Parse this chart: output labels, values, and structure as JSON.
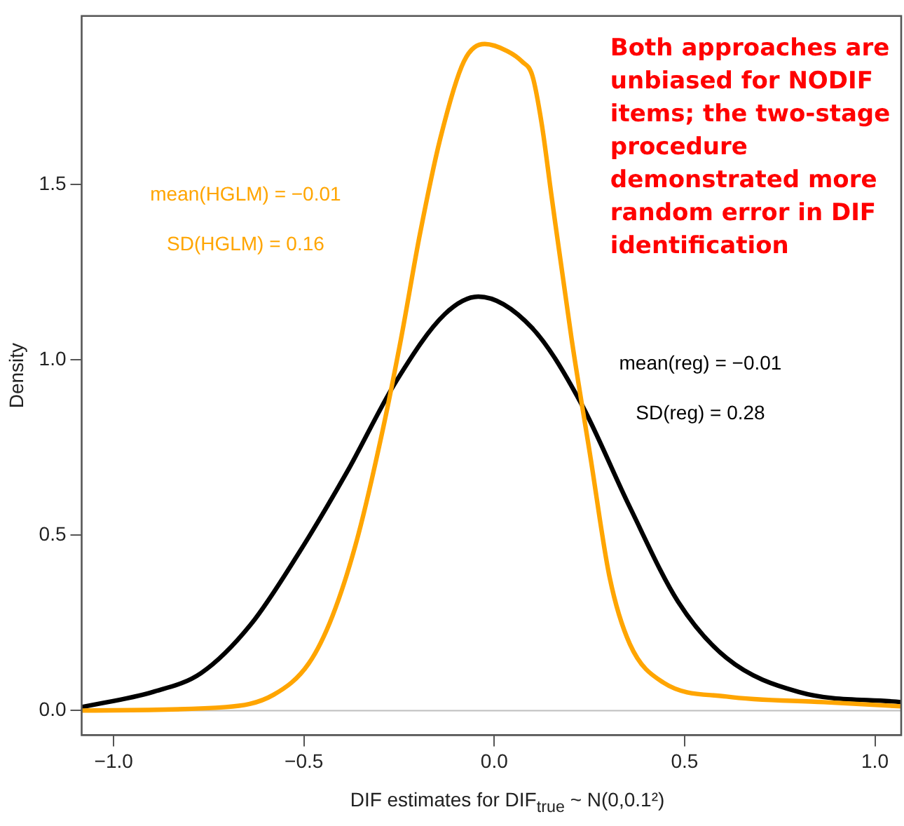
{
  "chart_data": {
    "type": "line",
    "xlabel": "DIF estimates for DIF$_{true}$ ~ N(0,0.1²)",
    "ylabel": "Density",
    "xlim": [
      -1.084,
      1.069
    ],
    "ylim": [
      -0.07,
      1.98
    ],
    "xticks": [
      {
        "value": -1,
        "label": "−1.0"
      },
      {
        "value": -0.5,
        "label": "−0.5"
      },
      {
        "value": 0,
        "label": "0.0"
      },
      {
        "value": 0.5,
        "label": "0.5"
      },
      {
        "value": 1,
        "label": "1.0"
      }
    ],
    "yticks": [
      {
        "value": 0,
        "label": "0.0"
      },
      {
        "value": 0.5,
        "label": "0.5"
      },
      {
        "value": 1,
        "label": "1.0"
      },
      {
        "value": 1.5,
        "label": "1.5"
      }
    ],
    "grid": false,
    "legend": false,
    "marker": "none",
    "line_style": "solid",
    "ref_lines": [
      {
        "axis": "y",
        "value": 0,
        "color": "#bebebe"
      }
    ],
    "series": [
      {
        "color": "#ffa500",
        "x": [
          -1.084,
          -0.705,
          -0.58,
          -0.487,
          -0.425,
          -0.36,
          -0.295,
          -0.245,
          -0.195,
          -0.142,
          -0.08,
          -0.025,
          0.034,
          0.073,
          0.1,
          0.125,
          0.15,
          0.203,
          0.253,
          0.303,
          0.356,
          0.444,
          0.61,
          0.866,
          1.069
        ],
        "values": [
          0.0,
          0.01,
          0.045,
          0.135,
          0.27,
          0.49,
          0.79,
          1.06,
          1.36,
          1.63,
          1.85,
          1.9,
          1.88,
          1.85,
          1.81,
          1.67,
          1.47,
          1.06,
          0.72,
          0.38,
          0.19,
          0.08,
          0.04,
          0.024,
          0.012
        ]
      },
      {
        "color": "#000000",
        "x": [
          -1.084,
          -0.897,
          -0.77,
          -0.64,
          -0.513,
          -0.387,
          -0.257,
          -0.13,
          -0.042,
          0.1,
          0.226,
          0.356,
          0.483,
          0.61,
          0.8,
          1.069
        ],
        "values": [
          0.01,
          0.053,
          0.107,
          0.245,
          0.45,
          0.68,
          0.94,
          1.13,
          1.18,
          1.09,
          0.88,
          0.58,
          0.31,
          0.15,
          0.053,
          0.024
        ]
      }
    ],
    "annotations": [
      "mean(HGLM) = −0.01",
      "SD(HGLM) = 0.16",
      "mean(reg) = −0.01",
      "SD(reg) = 0.28",
      "Both approaches are unbiased for NODIF items; the two-stage procedure demonstrated more random error in DIF identification"
    ]
  }
}
